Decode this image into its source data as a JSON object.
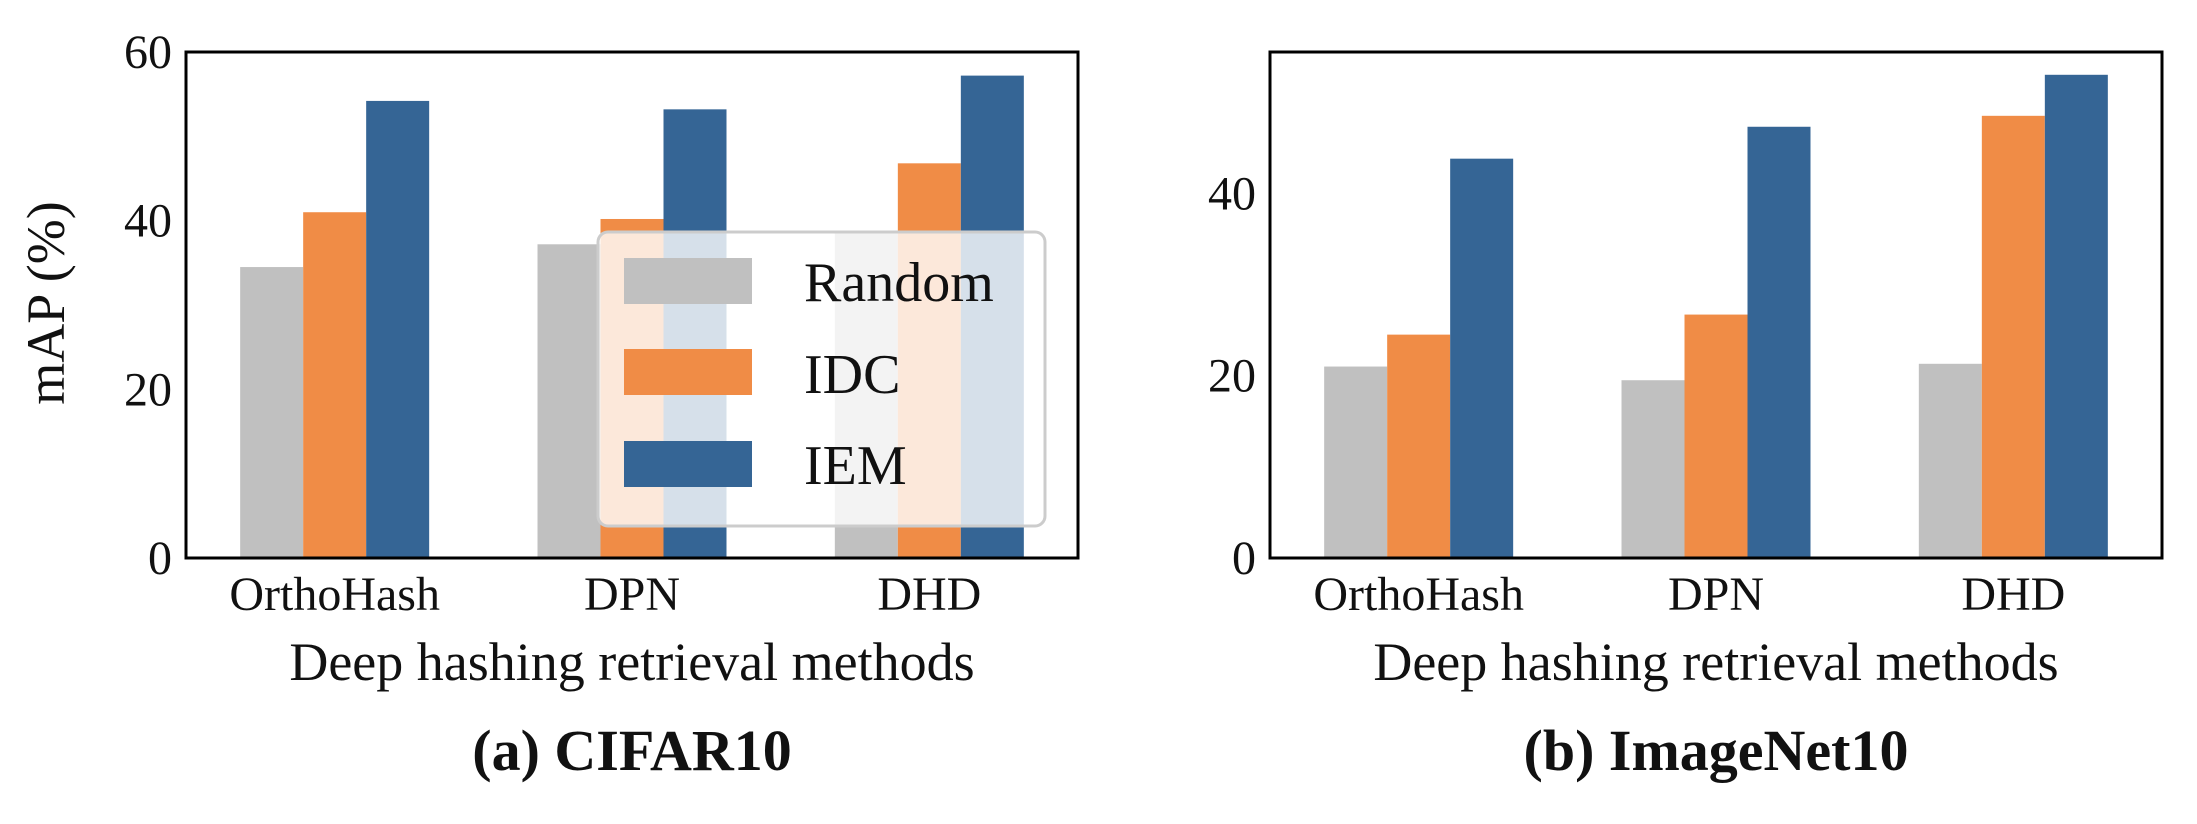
{
  "colors": {
    "random": "#c0c0c0",
    "idc": "#f08c46",
    "iem": "#356595",
    "axes": "#000000",
    "legend_border": "#cccccc"
  },
  "chart_data": [
    {
      "id": "cifar10",
      "type": "bar",
      "subtitle": "(a) CIFAR10",
      "xlabel": "Deep hashing retrieval methods",
      "ylabel": "mAP (%)",
      "categories": [
        "OrthoHash",
        "DPN",
        "DHD"
      ],
      "ylim": [
        0,
        60
      ],
      "yticks": [
        0,
        20,
        40,
        60
      ],
      "ytick_labels": [
        "0",
        "20",
        "40",
        "60"
      ],
      "series": [
        {
          "name": "Random",
          "values": [
            34.5,
            37.2,
            38.5
          ]
        },
        {
          "name": "IDC",
          "values": [
            41.0,
            40.2,
            46.8
          ]
        },
        {
          "name": "IEM",
          "values": [
            54.2,
            53.2,
            57.2
          ]
        }
      ],
      "legend": {
        "location": "center-right",
        "entries": [
          "Random",
          "IDC",
          "IEM"
        ]
      }
    },
    {
      "id": "imagenet10",
      "type": "bar",
      "subtitle": "(b) ImageNet10",
      "xlabel": "Deep hashing retrieval methods",
      "ylabel": "",
      "categories": [
        "OrthoHash",
        "DPN",
        "DHD"
      ],
      "ylim": [
        0,
        55.5
      ],
      "yticks": [
        0,
        20,
        40
      ],
      "ytick_labels": [
        "0",
        "20",
        "40"
      ],
      "series": [
        {
          "name": "Random",
          "values": [
            21.0,
            19.5,
            21.3
          ]
        },
        {
          "name": "IDC",
          "values": [
            24.5,
            26.7,
            48.5
          ]
        },
        {
          "name": "IEM",
          "values": [
            43.8,
            47.3,
            53.0
          ]
        }
      ]
    }
  ]
}
